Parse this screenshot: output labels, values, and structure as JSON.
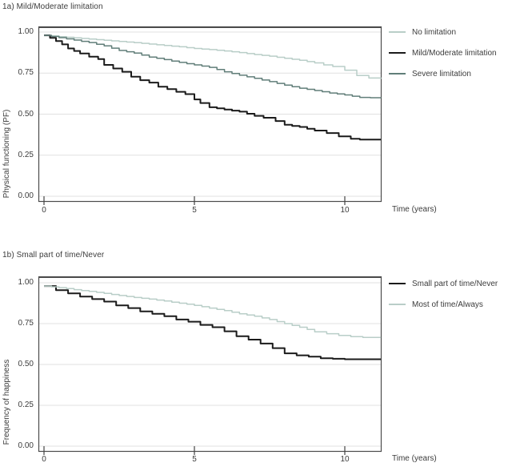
{
  "colors": {
    "background": "#ffffff",
    "grid": "#e1e1e1",
    "panel_border": "#4c4c4c",
    "tick": "#444444",
    "text": "#3c3c3c",
    "series_light": "#b9cec8",
    "series_dark": "#1b1b1b",
    "series_slate": "#617e79"
  },
  "chart_data": [
    {
      "type": "line",
      "subtype": "kaplan-meier-step",
      "title": "1a) Mild/Moderate limitation",
      "xlabel": "Time (years)",
      "ylabel": "Physical functioning (PF)",
      "xlim": [
        0,
        11.2
      ],
      "ylim": [
        0,
        1.0
      ],
      "xticks": [
        0,
        5,
        10
      ],
      "xticklabels": [
        "0",
        "5",
        "10"
      ],
      "yticks": [
        1.0,
        0.75,
        0.5,
        0.25,
        0.0
      ],
      "yticklabels": [
        "1.00",
        "0.75",
        "0.50",
        "0.25",
        "0.00"
      ],
      "grid": "horizontal",
      "legend_position": "right-outside",
      "series": [
        {
          "name": "No limitation",
          "color": "#b9cec8",
          "line_width": 1.5,
          "x": [
            0,
            0.5,
            1,
            1.5,
            2,
            2.5,
            3,
            3.5,
            4,
            4.5,
            5,
            5.5,
            6,
            6.5,
            7,
            7.5,
            8,
            8.5,
            9,
            9.3,
            9.6,
            10,
            10.4,
            10.8,
            11.2
          ],
          "y": [
            0.98,
            0.972,
            0.965,
            0.957,
            0.95,
            0.943,
            0.935,
            0.927,
            0.918,
            0.91,
            0.9,
            0.893,
            0.885,
            0.875,
            0.863,
            0.853,
            0.84,
            0.828,
            0.812,
            0.8,
            0.79,
            0.768,
            0.735,
            0.72,
            0.715
          ]
        },
        {
          "name": "Mild/Moderate limitation",
          "color": "#1b1b1b",
          "line_width": 2,
          "x": [
            0,
            0.2,
            0.4,
            0.6,
            0.8,
            1.0,
            1.2,
            1.5,
            1.8,
            2.0,
            2.3,
            2.6,
            2.9,
            3.2,
            3.5,
            3.8,
            4.1,
            4.4,
            4.7,
            5.0,
            5.2,
            5.5,
            6.0,
            6.5,
            7.0,
            7.3,
            7.7,
            8.0,
            8.5,
            9.0,
            9.4,
            9.8,
            10.2,
            10.5,
            11.2
          ],
          "y": [
            0.98,
            0.965,
            0.945,
            0.925,
            0.9,
            0.885,
            0.87,
            0.85,
            0.835,
            0.8,
            0.778,
            0.758,
            0.728,
            0.707,
            0.692,
            0.667,
            0.652,
            0.636,
            0.622,
            0.59,
            0.568,
            0.542,
            0.528,
            0.515,
            0.49,
            0.478,
            0.458,
            0.435,
            0.422,
            0.4,
            0.385,
            0.365,
            0.35,
            0.345,
            0.345
          ]
        },
        {
          "name": "Severe limitation",
          "color": "#617e79",
          "line_width": 1.5,
          "x": [
            0,
            0.5,
            1,
            1.5,
            2,
            2.5,
            3,
            3.5,
            4,
            4.5,
            5,
            5.5,
            6,
            6.5,
            7,
            7.5,
            8,
            8.5,
            9,
            9.5,
            10,
            10.5,
            11.2
          ],
          "y": [
            0.98,
            0.966,
            0.951,
            0.936,
            0.916,
            0.888,
            0.872,
            0.848,
            0.832,
            0.815,
            0.8,
            0.785,
            0.758,
            0.737,
            0.718,
            0.698,
            0.677,
            0.658,
            0.644,
            0.629,
            0.617,
            0.602,
            0.598
          ]
        }
      ]
    },
    {
      "type": "line",
      "subtype": "kaplan-meier-step",
      "title": "1b) Small part of time/Never",
      "xlabel": "Time (years)",
      "ylabel": "Frequency of happiness",
      "xlim": [
        0,
        11.2
      ],
      "ylim": [
        0,
        1.0
      ],
      "xticks": [
        0,
        5,
        10
      ],
      "xticklabels": [
        "0",
        "5",
        "10"
      ],
      "yticks": [
        1.0,
        0.75,
        0.5,
        0.25,
        0.0
      ],
      "yticklabels": [
        "1.00",
        "0.75",
        "0.50",
        "0.25",
        "0.00"
      ],
      "grid": "horizontal",
      "legend_position": "right-outside",
      "series": [
        {
          "name": "Small part of time/Never",
          "color": "#1b1b1b",
          "line_width": 2,
          "x": [
            0,
            0.4,
            0.8,
            1.2,
            1.6,
            2.0,
            2.4,
            2.8,
            3.2,
            3.6,
            4.0,
            4.4,
            4.8,
            5.2,
            5.6,
            6.0,
            6.4,
            6.8,
            7.2,
            7.6,
            8.0,
            8.4,
            8.8,
            9.2,
            9.6,
            10.0,
            11.2
          ],
          "y": [
            0.98,
            0.955,
            0.935,
            0.915,
            0.9,
            0.885,
            0.862,
            0.845,
            0.825,
            0.81,
            0.795,
            0.775,
            0.762,
            0.742,
            0.728,
            0.703,
            0.673,
            0.652,
            0.628,
            0.6,
            0.568,
            0.556,
            0.548,
            0.538,
            0.535,
            0.532,
            0.532
          ]
        },
        {
          "name": "Most of time/Always",
          "color": "#b9cec8",
          "line_width": 1.5,
          "x": [
            0,
            0.5,
            1,
            1.5,
            2,
            2.5,
            3,
            3.5,
            4,
            4.5,
            5,
            5.5,
            6,
            6.5,
            7,
            7.5,
            8,
            8.5,
            9,
            9.4,
            9.8,
            10.2,
            10.6,
            11.2
          ],
          "y": [
            0.98,
            0.97,
            0.958,
            0.947,
            0.935,
            0.922,
            0.91,
            0.9,
            0.888,
            0.875,
            0.862,
            0.845,
            0.83,
            0.81,
            0.795,
            0.775,
            0.75,
            0.728,
            0.7,
            0.688,
            0.678,
            0.67,
            0.665,
            0.665
          ]
        }
      ]
    }
  ]
}
